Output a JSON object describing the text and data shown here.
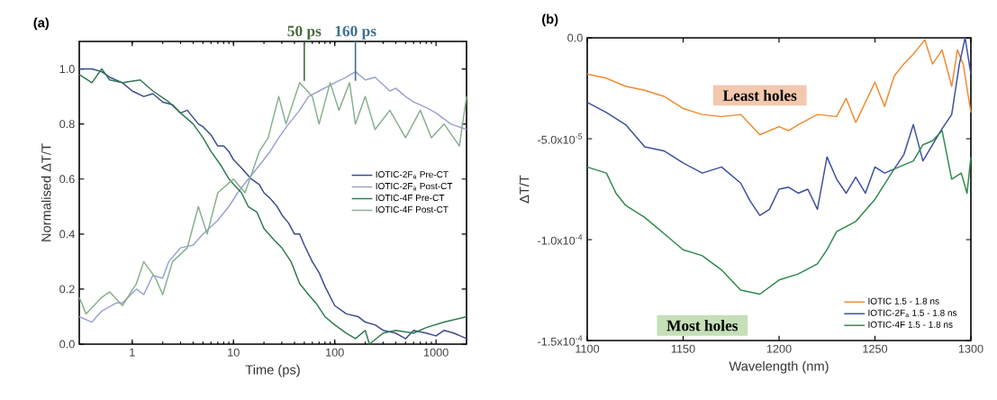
{
  "chart_data": [
    {
      "type": "line",
      "title": "(a)",
      "xlabel": "Time (ps)",
      "ylabel": "Normalised ΔT/T",
      "log": "x",
      "xlim": [
        0.3,
        2000
      ],
      "ylim": [
        0,
        1.1
      ],
      "xticks": [
        1,
        10,
        100,
        1000
      ],
      "yticks": [
        {
          "value": 0,
          "label": "0.0"
        },
        {
          "value": 0.2,
          "label": "0.2"
        },
        {
          "value": 0.4,
          "label": "0.4"
        },
        {
          "value": 0.6,
          "label": "0.6"
        },
        {
          "value": 0.8,
          "label": "0.8"
        },
        {
          "value": 1,
          "label": "1.0"
        }
      ],
      "legend": "right",
      "ref_lines": [
        {
          "axis": "x",
          "value": 50,
          "label": "50 ps",
          "color": "#4a6b3b"
        },
        {
          "axis": "x",
          "value": 160,
          "label": "160 ps",
          "color": "#3f6f93"
        }
      ],
      "series": [
        {
          "name": "IOTIC-2F$_{a}$ Pre-CT",
          "color": "#3a4a8c",
          "x": [
            0.3,
            0.4,
            0.5,
            0.6,
            0.8,
            1,
            1.3,
            1.6,
            2,
            2.5,
            3,
            3.5,
            4.5,
            5,
            6,
            7,
            8,
            9,
            10,
            12,
            15,
            18,
            20,
            23,
            27,
            30,
            35,
            40,
            45,
            50,
            60,
            70,
            80,
            100,
            130,
            170,
            200,
            250,
            300,
            400,
            500,
            600,
            800,
            1000,
            1200,
            1500,
            2000
          ],
          "values": [
            1.0,
            1.0,
            0.99,
            0.97,
            0.95,
            0.92,
            0.9,
            0.91,
            0.88,
            0.87,
            0.84,
            0.85,
            0.8,
            0.79,
            0.76,
            0.72,
            0.72,
            0.7,
            0.67,
            0.64,
            0.6,
            0.58,
            0.55,
            0.53,
            0.5,
            0.47,
            0.44,
            0.4,
            0.4,
            0.36,
            0.3,
            0.26,
            0.21,
            0.14,
            0.11,
            0.1,
            0.08,
            0.07,
            0.05,
            0.04,
            0.02,
            0.05,
            0.04,
            0.03,
            0.05,
            0.04,
            0.02
          ]
        },
        {
          "name": "IOTIC-2F$_{a}$ Post-CT",
          "color": "#9aa2d2",
          "x": [
            0.3,
            0.4,
            0.5,
            0.7,
            0.8,
            1.1,
            1.3,
            1.6,
            2,
            2.3,
            3,
            4,
            5,
            7,
            9,
            11,
            14,
            18,
            23,
            28,
            35,
            45,
            55,
            70,
            100,
            130,
            160,
            200,
            250,
            350,
            400,
            500,
            600,
            800,
            1000,
            1400,
            2000
          ],
          "values": [
            0.1,
            0.08,
            0.12,
            0.15,
            0.15,
            0.2,
            0.18,
            0.25,
            0.24,
            0.3,
            0.35,
            0.36,
            0.4,
            0.45,
            0.5,
            0.55,
            0.6,
            0.65,
            0.7,
            0.75,
            0.8,
            0.85,
            0.9,
            0.92,
            0.95,
            0.97,
            0.99,
            0.96,
            0.97,
            0.92,
            0.93,
            0.9,
            0.88,
            0.86,
            0.84,
            0.8,
            0.78
          ]
        },
        {
          "name": "IOTIC-4F Pre-CT",
          "color": "#2e7a50",
          "x": [
            0.3,
            0.4,
            0.5,
            0.6,
            0.8,
            1.2,
            1.6,
            2.3,
            3,
            4,
            5,
            6,
            7.5,
            9,
            12,
            14,
            17,
            20,
            25,
            30,
            37,
            45,
            55,
            65,
            80,
            100,
            130,
            160,
            200,
            220,
            300,
            400,
            600,
            800,
            1200,
            2000
          ],
          "values": [
            0.98,
            0.95,
            1.0,
            0.96,
            0.95,
            0.96,
            0.92,
            0.88,
            0.84,
            0.8,
            0.75,
            0.7,
            0.65,
            0.6,
            0.55,
            0.5,
            0.48,
            0.42,
            0.38,
            0.35,
            0.3,
            0.22,
            0.18,
            0.15,
            0.1,
            0.07,
            0.04,
            0.02,
            0.05,
            0.0,
            0.04,
            0.05,
            0.04,
            0.06,
            0.08,
            0.1
          ]
        },
        {
          "name": "IOTIC-4F Post-CT",
          "color": "#86b08e",
          "x": [
            0.3,
            0.35,
            0.5,
            0.6,
            0.8,
            1.1,
            1.3,
            1.7,
            2,
            2.5,
            3.5,
            4.5,
            5.5,
            7,
            10,
            13,
            18,
            22,
            28,
            33,
            45,
            60,
            70,
            90,
            110,
            140,
            160,
            200,
            250,
            350,
            500,
            700,
            900,
            1200,
            1700,
            2000
          ],
          "values": [
            0.17,
            0.11,
            0.17,
            0.19,
            0.14,
            0.22,
            0.3,
            0.24,
            0.18,
            0.3,
            0.35,
            0.5,
            0.4,
            0.55,
            0.6,
            0.55,
            0.7,
            0.75,
            0.9,
            0.8,
            0.95,
            0.9,
            0.8,
            0.95,
            0.85,
            0.95,
            0.8,
            0.9,
            0.78,
            0.85,
            0.75,
            0.85,
            0.75,
            0.8,
            0.72,
            0.9
          ]
        }
      ]
    },
    {
      "type": "line",
      "title": "(b)",
      "xlabel": "Wavelength (nm)",
      "ylabel": "ΔT/T",
      "xlim": [
        1100,
        1300
      ],
      "ylim": [
        -0.00015,
        0
      ],
      "xticks": [
        1100,
        1150,
        1200,
        1250,
        1300
      ],
      "yticks": [
        {
          "value": -0.00015,
          "label": "-1.5x10$^{-4}$"
        },
        {
          "value": -0.0001,
          "label": "-1.0x10$^{-4}$"
        },
        {
          "value": -5e-05,
          "label": "-5.0x10$^{-5}$"
        },
        {
          "value": 0,
          "label": "0.0"
        }
      ],
      "legend": "bottom right",
      "annotations": [
        "Least holes",
        "Most holes"
      ],
      "series": [
        {
          "name": "IOTIC 1.5 - 1.8 ns",
          "color": "#f08a30",
          "x": [
            1100,
            1110,
            1120,
            1130,
            1140,
            1150,
            1160,
            1170,
            1180,
            1185,
            1190,
            1200,
            1205,
            1210,
            1220,
            1230,
            1235,
            1240,
            1245,
            1250,
            1255,
            1260,
            1265,
            1270,
            1276,
            1280,
            1285,
            1290,
            1293,
            1296,
            1300
          ],
          "values": [
            -1.8e-05,
            -2e-05,
            -2.4e-05,
            -2.6e-05,
            -2.9e-05,
            -3.5e-05,
            -3.8e-05,
            -3.9e-05,
            -3.8e-05,
            -4.3e-05,
            -4.8e-05,
            -4.4e-05,
            -4.6e-05,
            -4.3e-05,
            -3.8e-05,
            -3.9e-05,
            -3e-05,
            -4.2e-05,
            -3.2e-05,
            -2.2e-05,
            -3.4e-05,
            -1.9e-05,
            -1.3e-05,
            -8e-06,
            -1e-06,
            -1.3e-05,
            -6e-06,
            -2.4e-05,
            -6e-06,
            -1.3e-05,
            -3.7e-05
          ]
        },
        {
          "name": "IOTIC-2F$_{a}$ 1.5 - 1.8 ns",
          "color": "#3a4ea0",
          "x": [
            1100,
            1110,
            1120,
            1130,
            1140,
            1150,
            1160,
            1170,
            1180,
            1185,
            1190,
            1195,
            1200,
            1205,
            1210,
            1215,
            1220,
            1225,
            1230,
            1235,
            1240,
            1245,
            1250,
            1255,
            1260,
            1265,
            1270,
            1275,
            1280,
            1285,
            1290,
            1294,
            1297,
            1300
          ],
          "values": [
            -3.2e-05,
            -3.7e-05,
            -4.3e-05,
            -5.4e-05,
            -5.6e-05,
            -6.2e-05,
            -6.7e-05,
            -6.4e-05,
            -7.2e-05,
            -8.1e-05,
            -8.8e-05,
            -8.5e-05,
            -7.5e-05,
            -7.4e-05,
            -7.7e-05,
            -7.5e-05,
            -8.5e-05,
            -5.9e-05,
            -7e-05,
            -7.7e-05,
            -6.9e-05,
            -7.7e-05,
            -6.4e-05,
            -6.7e-05,
            -6.5e-05,
            -5.8e-05,
            -4.3e-05,
            -6.1e-05,
            -5.3e-05,
            -4.5e-05,
            -3.8e-05,
            -1.3e-05,
            0.0,
            -1.8e-05
          ]
        },
        {
          "name": "IOTIC-4F 1.5 - 1.8 ns",
          "color": "#2d8a4a",
          "x": [
            1100,
            1110,
            1115,
            1120,
            1130,
            1140,
            1150,
            1160,
            1170,
            1180,
            1185,
            1190,
            1200,
            1210,
            1220,
            1225,
            1230,
            1240,
            1250,
            1260,
            1270,
            1275,
            1280,
            1285,
            1290,
            1295,
            1298,
            1300
          ],
          "values": [
            -6.4e-05,
            -6.7e-05,
            -7.7e-05,
            -8.3e-05,
            -8.9e-05,
            -9.7e-05,
            -0.000105,
            -0.000108,
            -0.000115,
            -0.000125,
            -0.000126,
            -0.000127,
            -0.00012,
            -0.000117,
            -0.000112,
            -0.000105,
            -9.6e-05,
            -9.1e-05,
            -8e-05,
            -6.5e-05,
            -6.1e-05,
            -5.3e-05,
            -5.1e-05,
            -4.6e-05,
            -7e-05,
            -6.7e-05,
            -7.7e-05,
            -5.9e-05
          ]
        }
      ]
    }
  ]
}
